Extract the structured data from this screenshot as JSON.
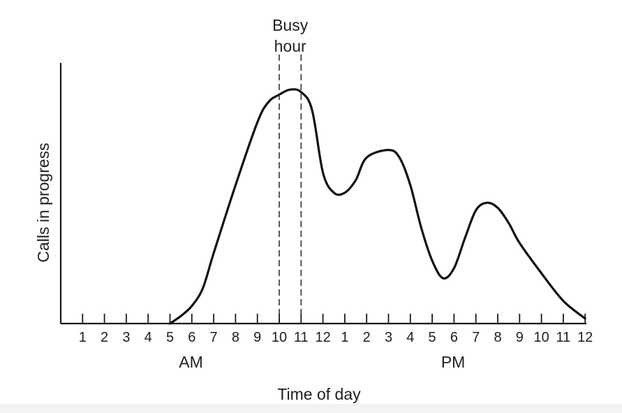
{
  "chart_data": {
    "type": "line",
    "title": "",
    "xlabel": "Time of day",
    "ylabel": "Calls in progress",
    "x_tick_labels": [
      "1",
      "2",
      "3",
      "4",
      "5",
      "6",
      "7",
      "8",
      "9",
      "10",
      "11",
      "12",
      "1",
      "2",
      "3",
      "4",
      "5",
      "6",
      "7",
      "8",
      "9",
      "10",
      "11",
      "12"
    ],
    "period_labels": [
      {
        "text": "AM",
        "at_hour": 5
      },
      {
        "text": "PM",
        "at_hour": 17
      }
    ],
    "xlim": [
      0,
      24
    ],
    "ylim": [
      0,
      100
    ],
    "grid": false,
    "y_ticks_shown": false,
    "annotations": [
      {
        "text_lines": [
          "Busy",
          "hour"
        ],
        "span": [
          10,
          11
        ],
        "style": "dashed-vertical-lines"
      }
    ],
    "series": [
      {
        "x": [
          5,
          5.5,
          6,
          6.5,
          7,
          8,
          9,
          9.5,
          10,
          10.5,
          11,
          11.5,
          12,
          12.5,
          13,
          13.5,
          14,
          15,
          15.5,
          16,
          16.5,
          17,
          17.5,
          18,
          18.5,
          19,
          19.5,
          20,
          20.5,
          21,
          22,
          23,
          24
        ],
        "y": [
          0,
          3,
          7,
          14,
          28,
          55,
          80,
          88,
          91,
          93,
          92,
          85,
          60,
          52,
          52,
          57,
          66,
          69,
          66,
          55,
          38,
          25,
          18,
          22,
          34,
          45,
          48,
          46,
          40,
          32,
          20,
          9,
          2
        ]
      }
    ]
  }
}
